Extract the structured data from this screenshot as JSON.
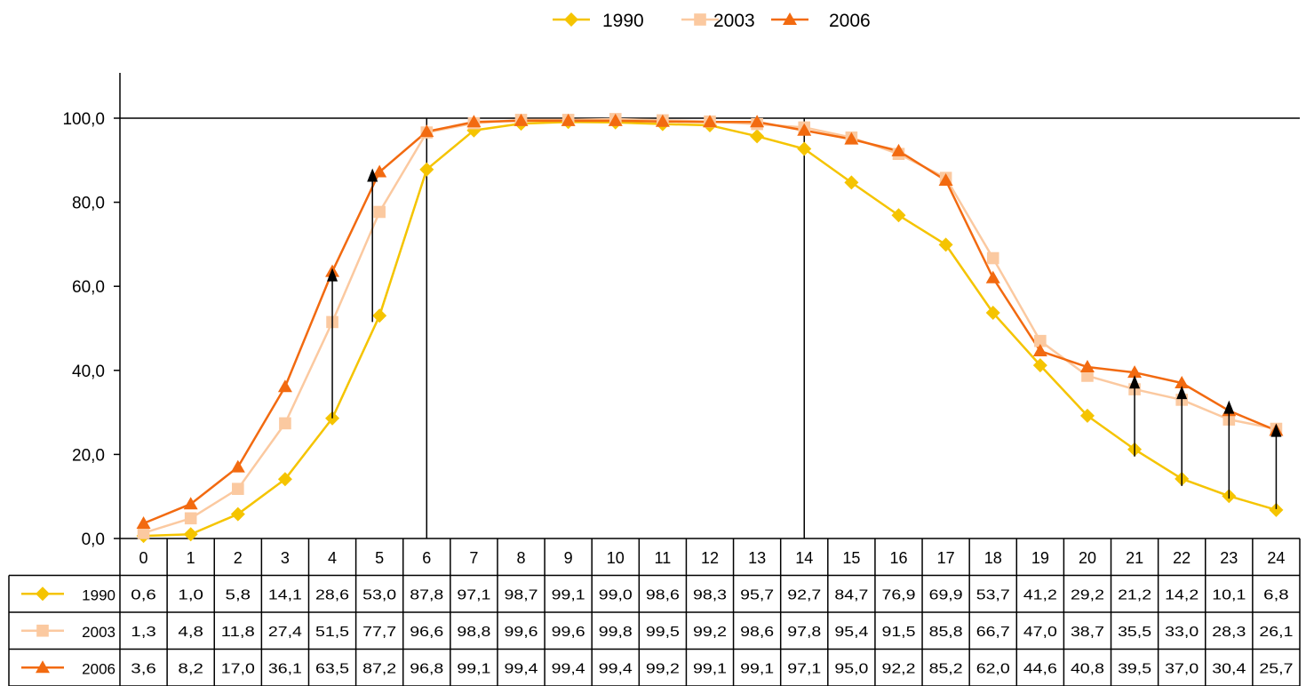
{
  "chart_data": {
    "type": "line",
    "x": [
      0,
      1,
      2,
      3,
      4,
      5,
      6,
      7,
      8,
      9,
      10,
      11,
      12,
      13,
      14,
      15,
      16,
      17,
      18,
      19,
      20,
      21,
      22,
      23,
      24
    ],
    "x_tick_labels": [
      "0",
      "1",
      "2",
      "3",
      "4",
      "5",
      "6",
      "7",
      "8",
      "9",
      "10",
      "11",
      "12",
      "13",
      "14",
      "15",
      "16",
      "17",
      "18",
      "19",
      "20",
      "21",
      "22",
      "23",
      "24"
    ],
    "ylim": [
      0,
      110
    ],
    "y_tick_values": [
      0,
      20,
      40,
      60,
      80,
      100
    ],
    "y_tick_labels": [
      "0,0",
      "20,0",
      "40,0",
      "60,0",
      "80,0",
      "100,0"
    ],
    "reference_line_y": 100,
    "reference_lines_x": [
      6,
      14
    ],
    "legend_position": "top-center",
    "grid": false,
    "series": [
      {
        "name": "1990",
        "color": "#f5c400",
        "marker": "diamond",
        "values": [
          0.6,
          1.0,
          5.8,
          14.1,
          28.6,
          53.0,
          87.8,
          97.1,
          98.7,
          99.1,
          99.0,
          98.6,
          98.3,
          95.7,
          92.7,
          84.7,
          76.9,
          69.9,
          53.7,
          41.2,
          29.2,
          21.2,
          14.2,
          10.1,
          6.8
        ],
        "labels": [
          "0,6",
          "1,0",
          "5,8",
          "14,1",
          "28,6",
          "53,0",
          "87,8",
          "97,1",
          "98,7",
          "99,1",
          "99,0",
          "98,6",
          "98,3",
          "95,7",
          "92,7",
          "84,7",
          "76,9",
          "69,9",
          "53,7",
          "41,2",
          "29,2",
          "21,2",
          "14,2",
          "10,1",
          "6,8"
        ]
      },
      {
        "name": "2003",
        "color": "#fbc9a0",
        "marker": "square",
        "values": [
          1.3,
          4.8,
          11.8,
          27.4,
          51.5,
          77.7,
          96.6,
          98.8,
          99.6,
          99.6,
          99.8,
          99.5,
          99.2,
          98.6,
          97.8,
          95.4,
          91.5,
          85.8,
          66.7,
          47.0,
          38.7,
          35.5,
          33.0,
          28.3,
          26.1
        ],
        "labels": [
          "1,3",
          "4,8",
          "11,8",
          "27,4",
          "51,5",
          "77,7",
          "96,6",
          "98,8",
          "99,6",
          "99,6",
          "99,8",
          "99,5",
          "99,2",
          "98,6",
          "97,8",
          "95,4",
          "91,5",
          "85,8",
          "66,7",
          "47,0",
          "38,7",
          "35,5",
          "33,0",
          "28,3",
          "26,1"
        ]
      },
      {
        "name": "2006",
        "color": "#f26a10",
        "marker": "triangle",
        "values": [
          3.6,
          8.2,
          17.0,
          36.1,
          63.5,
          87.2,
          96.8,
          99.1,
          99.4,
          99.4,
          99.4,
          99.2,
          99.1,
          99.1,
          97.1,
          95.0,
          92.2,
          85.2,
          62.0,
          44.6,
          40.8,
          39.5,
          37.0,
          30.4,
          25.7
        ],
        "labels": [
          "3,6",
          "8,2",
          "17,0",
          "36,1",
          "63,5",
          "87,2",
          "96,8",
          "99,1",
          "99,4",
          "99,4",
          "99,4",
          "99,2",
          "99,1",
          "99,1",
          "97,1",
          "95,0",
          "92,2",
          "85,2",
          "62,0",
          "44,6",
          "40,8",
          "39,5",
          "37,0",
          "30,4",
          "25,7"
        ]
      }
    ],
    "arrows": [
      {
        "x": 4,
        "from": 28.6,
        "to": 63.5
      },
      {
        "x": 4.85,
        "from": 51.5,
        "to": 87.2
      },
      {
        "x": 21,
        "from": 19.5,
        "to": 38.0
      },
      {
        "x": 22,
        "from": 12.5,
        "to": 35.5
      },
      {
        "x": 23,
        "from": 9.5,
        "to": 32.0
      },
      {
        "x": 24,
        "from": 7.0,
        "to": 26.5
      }
    ]
  }
}
